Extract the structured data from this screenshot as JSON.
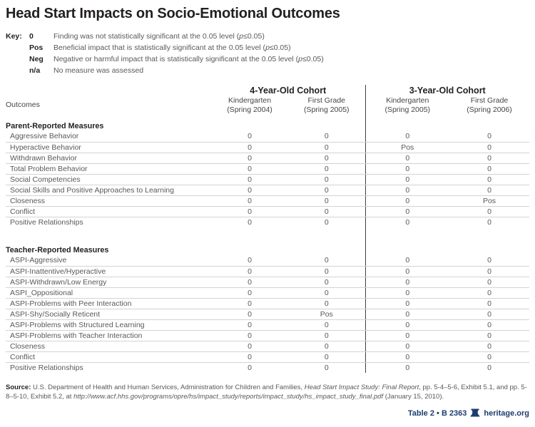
{
  "title": "Head Start Impacts on Socio-Emotional Outcomes",
  "key": {
    "label": "Key:",
    "entries": [
      {
        "symbol": "0",
        "description_segments": [
          {
            "t": "Finding was not statistically significant at the 0.05 level ("
          },
          {
            "t": "p",
            "i": true
          },
          {
            "t": "≤0.05)"
          }
        ]
      },
      {
        "symbol": "Pos",
        "description_segments": [
          {
            "t": "Beneficial impact that is statistically significant at the 0.05 level ("
          },
          {
            "t": "p",
            "i": true
          },
          {
            "t": "≤0.05)"
          }
        ]
      },
      {
        "symbol": "Neg",
        "description_segments": [
          {
            "t": "Negative or harmful impact that is statistically significant at the 0.05 level ("
          },
          {
            "t": "p",
            "i": true
          },
          {
            "t": "≤0.05)"
          }
        ]
      },
      {
        "symbol": "n/a",
        "description_segments": [
          {
            "t": "No measure was assessed"
          }
        ]
      }
    ]
  },
  "table": {
    "outcomes_label": "Outcomes",
    "cohort_groups": [
      {
        "label": "4-Year-Old Cohort",
        "sub": [
          {
            "line1": "Kindergarten",
            "line2": "(Spring 2004)"
          },
          {
            "line1": "First Grade",
            "line2": "(Spring 2005)"
          }
        ]
      },
      {
        "label": "3-Year-Old Cohort",
        "sub": [
          {
            "line1": "Kindergarten",
            "line2": "(Spring 2005)"
          },
          {
            "line1": "First Grade",
            "line2": "(Spring 2006)"
          }
        ]
      }
    ]
  },
  "chart_data": {
    "type": "table",
    "title": "Head Start Impacts on Socio-Emotional Outcomes",
    "columns": [
      "Outcomes",
      "4-Year-Old Cohort — Kindergarten (Spring 2004)",
      "4-Year-Old Cohort — First Grade (Spring 2005)",
      "3-Year-Old Cohort — Kindergarten (Spring 2005)",
      "3-Year-Old Cohort — First Grade (Spring 2006)"
    ],
    "value_legend": {
      "0": "not statistically significant",
      "Pos": "beneficial significant impact",
      "Neg": "negative significant impact",
      "n/a": "no measure assessed"
    },
    "sections": [
      {
        "header": "Parent-Reported Measures",
        "rows": [
          {
            "label": "Aggressive Behavior",
            "values": [
              "0",
              "0",
              "0",
              "0"
            ]
          },
          {
            "label": "Hyperactive Behavior",
            "values": [
              "0",
              "0",
              "Pos",
              "0"
            ]
          },
          {
            "label": "Withdrawn Behavior",
            "values": [
              "0",
              "0",
              "0",
              "0"
            ]
          },
          {
            "label": "Total Problem Behavior",
            "values": [
              "0",
              "0",
              "0",
              "0"
            ]
          },
          {
            "label": "Social Competencies",
            "values": [
              "0",
              "0",
              "0",
              "0"
            ]
          },
          {
            "label": "Social Skills and Positive Approaches to Learning",
            "values": [
              "0",
              "0",
              "0",
              "0"
            ]
          },
          {
            "label": "Closeness",
            "values": [
              "0",
              "0",
              "0",
              "Pos"
            ]
          },
          {
            "label": "Conflict",
            "values": [
              "0",
              "0",
              "0",
              "0"
            ]
          },
          {
            "label": "Positive Relationships",
            "values": [
              "0",
              "0",
              "0",
              "0"
            ]
          }
        ]
      },
      {
        "header": "Teacher-Reported Measures",
        "rows": [
          {
            "label": "ASPI-Aggressive",
            "values": [
              "0",
              "0",
              "0",
              "0"
            ]
          },
          {
            "label": "ASPI-Inattentive/Hyperactive",
            "values": [
              "0",
              "0",
              "0",
              "0"
            ]
          },
          {
            "label": "ASPI-Withdrawn/Low Energy",
            "values": [
              "0",
              "0",
              "0",
              "0"
            ]
          },
          {
            "label": "ASPI_Oppositional",
            "values": [
              "0",
              "0",
              "0",
              "0"
            ]
          },
          {
            "label": "ASPI-Problems with Peer Interaction",
            "values": [
              "0",
              "0",
              "0",
              "0"
            ]
          },
          {
            "label": "ASPI-Shy/Socially Reticent",
            "values": [
              "0",
              "Pos",
              "0",
              "0"
            ]
          },
          {
            "label": "ASPI-Problems with Structured Learning",
            "values": [
              "0",
              "0",
              "0",
              "0"
            ]
          },
          {
            "label": "ASPI-Problems with Teacher Interaction",
            "values": [
              "0",
              "0",
              "0",
              "0"
            ]
          },
          {
            "label": "Closeness",
            "values": [
              "0",
              "0",
              "0",
              "0"
            ]
          },
          {
            "label": "Conflict",
            "values": [
              "0",
              "0",
              "0",
              "0"
            ]
          },
          {
            "label": "Positive Relationships",
            "values": [
              "0",
              "0",
              "0",
              "0"
            ]
          }
        ]
      }
    ]
  },
  "source": {
    "segments": [
      {
        "t": "Source: ",
        "b": true
      },
      {
        "t": "U.S. Department of Health and Human Services, Administration for Children and Families, "
      },
      {
        "t": "Head Start Impact Study: Final Report",
        "i": true
      },
      {
        "t": ", pp. 5-4–5-6, Exhibit 5.1, and pp. 5-8–5-10, Exhibit 5.2, at "
      },
      {
        "t": "http://www.acf.hhs.gov/programs/opre/hs/impact_study/reports/impact_study/hs_impact_study_final.pdf",
        "i": true
      },
      {
        "t": " (January 15, 2010)."
      }
    ]
  },
  "footer": {
    "table_ref": "Table 2 • B 2363",
    "site": "heritage.org",
    "accent_color": "#1d3d6f"
  }
}
